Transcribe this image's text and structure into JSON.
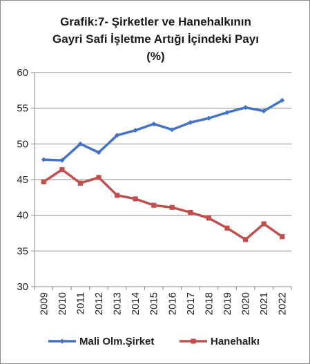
{
  "chart_data": {
    "type": "line",
    "title_lines": [
      "Grafik:7- Şirketler ve Hanehalkının",
      "Gayri Safi İşletme Artığı İçindeki Payı",
      "(%)"
    ],
    "categories": [
      "2009",
      "2010",
      "2011",
      "2012",
      "2013",
      "2014",
      "2015",
      "2016",
      "2017",
      "2018",
      "2019",
      "2020",
      "2021",
      "2022"
    ],
    "ylim": [
      30,
      60
    ],
    "yticks": [
      30,
      35,
      40,
      45,
      50,
      55,
      60
    ],
    "grid": true,
    "legend_position": "bottom",
    "series": [
      {
        "name": "Mali Olm.Şirket",
        "color": "#4472C4",
        "marker": "diamond",
        "values": [
          47.8,
          47.7,
          50.0,
          48.8,
          51.2,
          51.9,
          52.8,
          52.0,
          53.0,
          53.6,
          54.4,
          55.1,
          54.6,
          56.1
        ]
      },
      {
        "name": "Hanehalkı",
        "color": "#C0504D",
        "marker": "square",
        "values": [
          44.7,
          46.4,
          44.5,
          45.3,
          42.8,
          42.3,
          41.4,
          41.1,
          40.4,
          39.6,
          38.2,
          36.6,
          38.8,
          37.0
        ]
      }
    ]
  }
}
